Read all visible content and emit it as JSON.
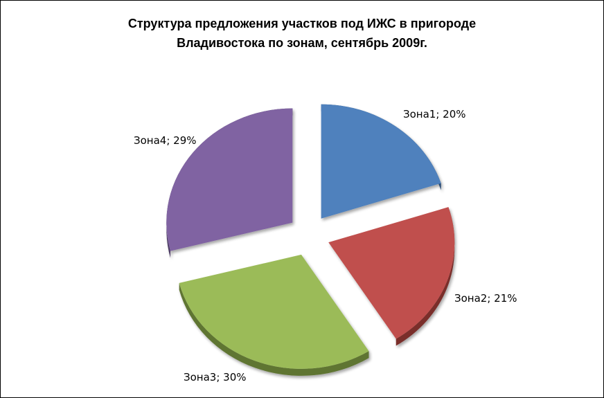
{
  "chart_data": {
    "type": "pie",
    "title_line1": "Структура предложения участков под ИЖС в пригороде",
    "title_line2": "Владивостока по зонам,  сентябрь 2009г.",
    "slices": [
      {
        "name": "Зона1",
        "value": 20,
        "label": "Зона1; 20%",
        "color": "#4F81BD",
        "dark": "#2C4D75"
      },
      {
        "name": "Зона2",
        "value": 21,
        "label": "Зона2; 21%",
        "color": "#C0504D",
        "dark": "#7A2E2C"
      },
      {
        "name": "Зона3",
        "value": 30,
        "label": "Зона3; 30%",
        "color": "#9BBB59",
        "dark": "#5F7530"
      },
      {
        "name": "Зона4",
        "value": 29,
        "label": "Зона4; 29%",
        "color": "#8064A2",
        "dark": "#4B3A63"
      }
    ],
    "legend": "none",
    "exploded": true
  }
}
